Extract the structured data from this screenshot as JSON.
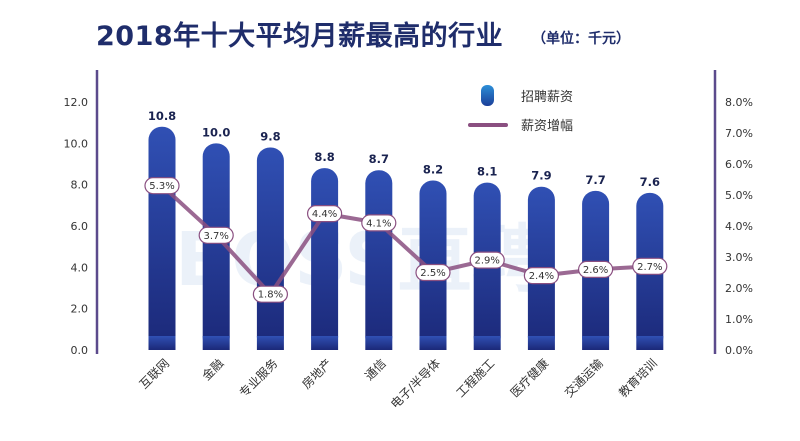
{
  "title": "2018年十大平均月薪最高的行业",
  "unit": "（单位：千元）",
  "watermark": "BOSS直聘",
  "colors": {
    "bar_top": "#2c4aa8",
    "bar_bottom": "#1c2a7a",
    "line": "#8a4f80",
    "axis": "#5b4a8c",
    "title": "#1f2d6b"
  },
  "chart_data": {
    "type": "bar",
    "categories": [
      "互联网",
      "金融",
      "专业服务",
      "房地产",
      "通信",
      "电子/半导体",
      "工程施工",
      "医疗健康",
      "交通运输",
      "教育培训"
    ],
    "series": [
      {
        "name": "招聘薪资",
        "type": "bar",
        "axis": "left",
        "values": [
          10.8,
          10.0,
          9.8,
          8.8,
          8.7,
          8.2,
          8.1,
          7.9,
          7.7,
          7.6
        ],
        "labels": [
          "10.8",
          "10.0",
          "9.8",
          "8.8",
          "8.7",
          "8.2",
          "8.1",
          "7.9",
          "7.7",
          "7.6"
        ]
      },
      {
        "name": "薪资增幅",
        "type": "line",
        "axis": "right",
        "values": [
          5.3,
          3.7,
          1.8,
          4.4,
          4.1,
          2.5,
          2.9,
          2.4,
          2.6,
          2.7
        ],
        "labels": [
          "5.3%",
          "3.7%",
          "1.8%",
          "4.4%",
          "4.1%",
          "2.5%",
          "2.9%",
          "2.4%",
          "2.6%",
          "2.7%"
        ]
      }
    ],
    "ylim_left": [
      0,
      12
    ],
    "ylim_right": [
      0,
      8
    ],
    "left_ticks": [
      "0.0",
      "2.0",
      "4.0",
      "6.0",
      "8.0",
      "10.0",
      "12.0"
    ],
    "right_ticks": [
      "0.0%",
      "1.0%",
      "2.0%",
      "3.0%",
      "4.0%",
      "5.0%",
      "6.0%",
      "7.0%",
      "8.0%"
    ],
    "legend": "top-right",
    "grid": false
  }
}
